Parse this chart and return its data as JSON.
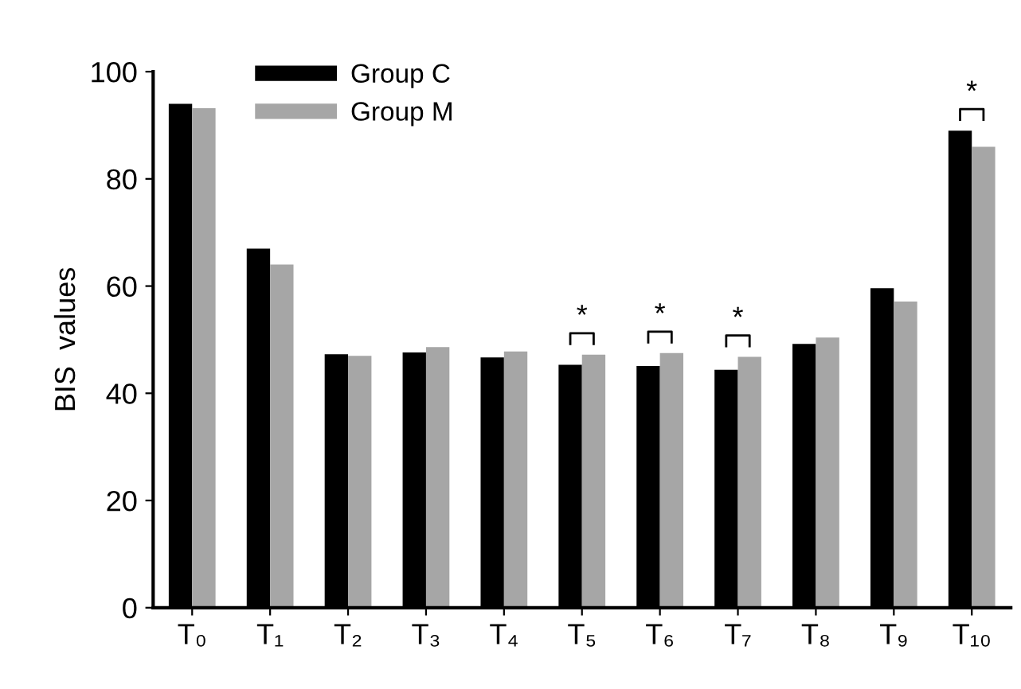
{
  "chart_data": {
    "type": "bar",
    "ylabel": "BIS  values",
    "categories": [
      "T₀",
      "T₁",
      "T₂",
      "T₃",
      "T₄",
      "T₅",
      "T₆",
      "T₇",
      "T₈",
      "T₉",
      "T₁₀"
    ],
    "series": [
      {
        "name": "Group C",
        "color": "#000000",
        "values": [
          94,
          67,
          47.3,
          47.6,
          46.7,
          45.3,
          45.1,
          44.4,
          49.2,
          59.6,
          89
        ]
      },
      {
        "name": "Group M",
        "color": "#a6a6a6",
        "values": [
          93.2,
          64,
          47,
          48.6,
          47.8,
          47.2,
          47.5,
          46.8,
          50.4,
          57.1,
          86
        ]
      }
    ],
    "ylim": [
      0,
      100
    ],
    "yticks": [
      0,
      20,
      40,
      60,
      80,
      100
    ],
    "grid": false,
    "legend": "top left",
    "annotations": [
      {
        "text": "*",
        "x": "T₅",
        "y": 47.2
      },
      {
        "text": "*",
        "x": "T₆",
        "y": 47.5
      },
      {
        "text": "*",
        "x": "T₇",
        "y": 46.8
      },
      {
        "text": "*",
        "x": "T₁₀",
        "y": 89
      }
    ]
  }
}
